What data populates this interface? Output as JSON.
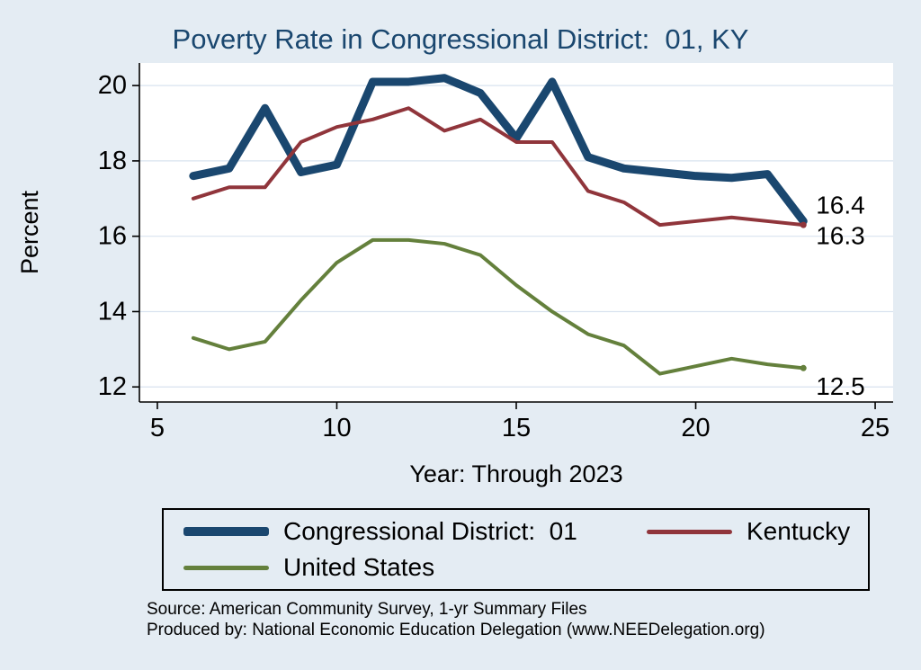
{
  "chart_data": {
    "type": "line",
    "title": "Poverty Rate in Congressional District:  01, KY",
    "xlabel": "Year: Through 2023",
    "ylabel": "Percent",
    "xlim": [
      4.5,
      25.5
    ],
    "ylim": [
      11.6,
      20.6
    ],
    "xticks": [
      5,
      10,
      15,
      20,
      25
    ],
    "yticks": [
      12,
      14,
      16,
      18,
      20
    ],
    "x": [
      6,
      7,
      8,
      9,
      10,
      11,
      12,
      13,
      14,
      15,
      16,
      17,
      18,
      19,
      20,
      21,
      22,
      23
    ],
    "grid": true,
    "legend_position": "bottom",
    "series": [
      {
        "name": "Congressional District:  01",
        "color": "#1a476f",
        "width": 9,
        "values": [
          17.6,
          17.8,
          19.4,
          17.7,
          17.9,
          20.1,
          20.1,
          20.2,
          19.8,
          18.6,
          20.1,
          18.1,
          17.8,
          17.7,
          17.6,
          17.55,
          17.65,
          16.4
        ],
        "end_label": "16.4",
        "end_label_dy": -18
      },
      {
        "name": "Kentucky",
        "color": "#90353b",
        "width": 4,
        "values": [
          17.0,
          17.3,
          17.3,
          18.5,
          18.9,
          19.1,
          19.4,
          18.8,
          19.1,
          18.5,
          18.5,
          17.2,
          16.9,
          16.3,
          16.4,
          16.5,
          16.4,
          16.3
        ],
        "end_label": "16.3",
        "end_label_dy": 12
      },
      {
        "name": "United States",
        "color": "#64803c",
        "width": 4,
        "values": [
          13.3,
          13.0,
          13.2,
          14.3,
          15.3,
          15.9,
          15.9,
          15.8,
          15.5,
          14.7,
          14.0,
          13.4,
          13.1,
          12.35,
          12.55,
          12.75,
          12.6,
          12.5
        ],
        "end_label": "12.5",
        "end_label_dy": 20
      }
    ],
    "colors": {
      "background": "#e4ecf3",
      "plot_background": "#ffffff",
      "grid": "#d9e3ef",
      "axis": "#000000",
      "title_text": "#1a476f",
      "label_text": "#000000"
    }
  },
  "footer": {
    "line1": "Source: American Community Survey, 1-yr Summary Files",
    "line2": "Produced by: National Economic Education Delegation (www.NEEDelegation.org)"
  }
}
